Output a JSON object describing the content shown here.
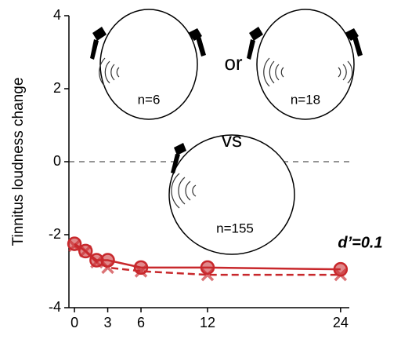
{
  "chart_data": {
    "type": "line",
    "ylabel": "Tinnitus loudness change",
    "xlim": [
      -0.5,
      25
    ],
    "xticks": [
      0,
      3,
      6,
      12,
      24
    ],
    "ylim": [
      -4,
      4
    ],
    "yticks": [
      -4,
      -2,
      0,
      2,
      4
    ],
    "hline": 0,
    "series": [
      {
        "color": "#c8282c",
        "marker": "circle",
        "linestyle": "solid",
        "x": [
          0,
          1,
          2,
          3,
          6,
          12,
          24
        ],
        "values": [
          -2.25,
          -2.45,
          -2.7,
          -2.7,
          -2.9,
          -2.9,
          -2.95
        ]
      },
      {
        "color": "#c8282c",
        "marker": "x",
        "linestyle": "dashed",
        "x": [
          0,
          1,
          2,
          3,
          6,
          12,
          24
        ],
        "values": [
          -2.3,
          -2.45,
          -2.75,
          -2.9,
          -3.0,
          -3.1,
          -3.1
        ]
      }
    ],
    "annotations": {
      "effect": "d’=0.1",
      "or": "or",
      "vs": "vs",
      "n1": "n=6",
      "n2": "n=18",
      "n3": "n=155"
    }
  }
}
